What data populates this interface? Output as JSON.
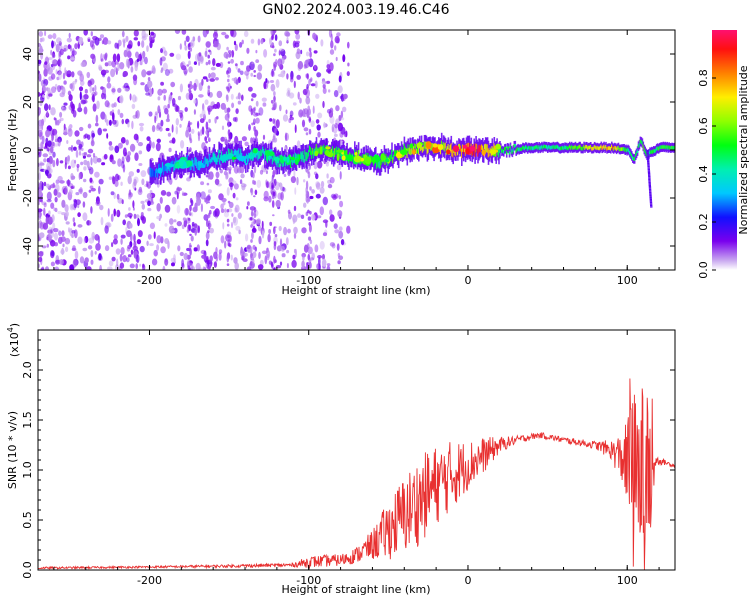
{
  "title": "GN02.2024.003.19.46.C46",
  "chart_data": [
    {
      "type": "heatmap",
      "xlabel": "Height of straight line (km)",
      "ylabel": "Frequency (Hz)",
      "xlim": [
        -270,
        130
      ],
      "ylim": [
        -50,
        50
      ],
      "xticks": [
        -200,
        -100,
        0,
        100
      ],
      "yticks": [
        -40,
        -20,
        0,
        20,
        40
      ],
      "colorbar": {
        "label": "Normalized spectral amplitude",
        "range": [
          0,
          1
        ],
        "ticks": [
          "0.0",
          "0.2",
          "0.4",
          "0.6",
          "0.8"
        ],
        "tick_values": [
          0.0,
          0.2,
          0.4,
          0.6,
          0.8
        ]
      },
      "ridge": [
        {
          "x": -200,
          "f": -10,
          "a": 0.3
        },
        {
          "x": -190,
          "f": -7,
          "a": 0.35
        },
        {
          "x": -180,
          "f": -5,
          "a": 0.4
        },
        {
          "x": -170,
          "f": -6,
          "a": 0.35
        },
        {
          "x": -160,
          "f": -4,
          "a": 0.4
        },
        {
          "x": -150,
          "f": -2,
          "a": 0.45
        },
        {
          "x": -140,
          "f": -3,
          "a": 0.4
        },
        {
          "x": -130,
          "f": -1,
          "a": 0.45
        },
        {
          "x": -120,
          "f": -4,
          "a": 0.45
        },
        {
          "x": -110,
          "f": -5,
          "a": 0.5
        },
        {
          "x": -100,
          "f": -1,
          "a": 0.55
        },
        {
          "x": -90,
          "f": 0,
          "a": 0.6
        },
        {
          "x": -80,
          "f": -2,
          "a": 0.6
        },
        {
          "x": -70,
          "f": -3,
          "a": 0.6
        },
        {
          "x": -60,
          "f": -5,
          "a": 0.55
        },
        {
          "x": -50,
          "f": -4,
          "a": 0.6
        },
        {
          "x": -40,
          "f": 0,
          "a": 0.65
        },
        {
          "x": -30,
          "f": 1,
          "a": 0.7
        },
        {
          "x": -20,
          "f": 1,
          "a": 0.75
        },
        {
          "x": -10,
          "f": 0,
          "a": 0.8
        },
        {
          "x": 0,
          "f": 0,
          "a": 0.95
        },
        {
          "x": 10,
          "f": 0,
          "a": 0.9
        },
        {
          "x": 20,
          "f": 0,
          "a": 0.55
        },
        {
          "x": 40,
          "f": 1,
          "a": 0.5
        },
        {
          "x": 60,
          "f": 1,
          "a": 0.5
        },
        {
          "x": 80,
          "f": 1,
          "a": 0.8
        },
        {
          "x": 90,
          "f": 1,
          "a": 0.85
        },
        {
          "x": 100,
          "f": 0,
          "a": 0.5
        },
        {
          "x": 104,
          "f": -4,
          "a": 0.5
        },
        {
          "x": 108,
          "f": 4,
          "a": 0.6
        },
        {
          "x": 112,
          "f": -2,
          "a": 0.5
        },
        {
          "x": 120,
          "f": 1,
          "a": 0.55
        },
        {
          "x": 130,
          "f": 1,
          "a": 0.55
        }
      ]
    },
    {
      "type": "line",
      "xlabel": "Height of straight line (km)",
      "ylabel": "SNR (10 * v/v)",
      "y_multiplier_label": "(x10",
      "y_multiplier_exp": "4",
      "xlim": [
        -270,
        130
      ],
      "ylim": [
        0,
        2.4
      ],
      "xticks": [
        -200,
        -100,
        0,
        100
      ],
      "yticks": [
        0.0,
        0.5,
        1.0,
        1.5,
        2.0
      ],
      "ytick_labels": [
        "0.0",
        "0.5",
        "1.0",
        "1.5",
        "2.0"
      ],
      "series": [
        {
          "color": "#e83030",
          "envelope": [
            {
              "x": -270,
              "base": 0.02,
              "noise": 0.01
            },
            {
              "x": -200,
              "base": 0.03,
              "noise": 0.01
            },
            {
              "x": -150,
              "base": 0.04,
              "noise": 0.015
            },
            {
              "x": -110,
              "base": 0.05,
              "noise": 0.02
            },
            {
              "x": -100,
              "base": 0.08,
              "noise": 0.06
            },
            {
              "x": -80,
              "base": 0.1,
              "noise": 0.06
            },
            {
              "x": -70,
              "base": 0.15,
              "noise": 0.08
            },
            {
              "x": -60,
              "base": 0.25,
              "noise": 0.15
            },
            {
              "x": -50,
              "base": 0.4,
              "noise": 0.3
            },
            {
              "x": -40,
              "base": 0.55,
              "noise": 0.4
            },
            {
              "x": -30,
              "base": 0.7,
              "noise": 0.45
            },
            {
              "x": -20,
              "base": 0.85,
              "noise": 0.4
            },
            {
              "x": -10,
              "base": 0.95,
              "noise": 0.35
            },
            {
              "x": 0,
              "base": 1.05,
              "noise": 0.25
            },
            {
              "x": 10,
              "base": 1.15,
              "noise": 0.18
            },
            {
              "x": 20,
              "base": 1.25,
              "noise": 0.08
            },
            {
              "x": 30,
              "base": 1.3,
              "noise": 0.04
            },
            {
              "x": 45,
              "base": 1.35,
              "noise": 0.03
            },
            {
              "x": 60,
              "base": 1.3,
              "noise": 0.03
            },
            {
              "x": 80,
              "base": 1.25,
              "noise": 0.04
            },
            {
              "x": 90,
              "base": 1.2,
              "noise": 0.1
            },
            {
              "x": 98,
              "base": 1.1,
              "noise": 0.3
            },
            {
              "x": 104,
              "base": 0.9,
              "noise": 0.9
            },
            {
              "x": 110,
              "base": 1.0,
              "noise": 0.9
            },
            {
              "x": 115,
              "base": 0.9,
              "noise": 0.7
            },
            {
              "x": 118,
              "base": 1.1,
              "noise": 0.05
            },
            {
              "x": 125,
              "base": 1.07,
              "noise": 0.02
            },
            {
              "x": 130,
              "base": 1.04,
              "noise": 0.02
            }
          ]
        }
      ]
    }
  ]
}
